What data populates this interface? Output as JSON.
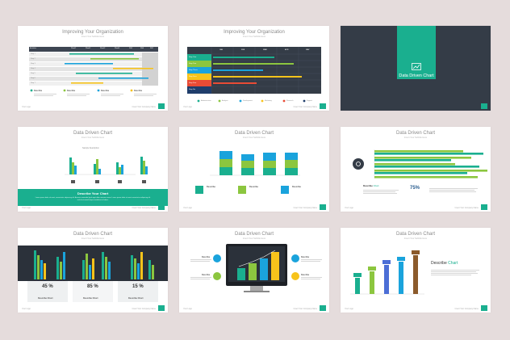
{
  "colors": {
    "teal": "#1aaf8f",
    "green": "#8cc63f",
    "blue": "#1aa3dc",
    "yellow": "#f7c31b",
    "red": "#e94b35",
    "navy": "#1f3d6b",
    "dark": "#343c47",
    "background": "#e5dcdc"
  },
  "slides": {
    "s1": {
      "title": "Improving Your Organization",
      "subtitle": "Insert Your Subtitle Here",
      "header_cells": [
        "Activities",
        "Week1",
        "Week2",
        "Week3",
        "Week4",
        "Wk5",
        "Wk6",
        "Wk7"
      ],
      "rows": [
        "Step 1",
        "Step 2",
        "Step 3",
        "Step 4",
        "Step 5",
        "Step 6",
        "Step 7"
      ],
      "legend": [
        "Describe",
        "Describe",
        "Describe",
        "Describe"
      ],
      "footer_left": "Your Logo",
      "footer_right": "Insert Your Company Name"
    },
    "s2": {
      "title": "Improving Your Organization",
      "subtitle": "Insert Your Subtitle Here",
      "columns": [
        "JAN",
        "FEB",
        "MAR",
        "APR",
        "MAY"
      ],
      "rows": [
        "Step One",
        "Step Two",
        "Step Three",
        "Step Four",
        "Step Five",
        "Step Six"
      ],
      "legend": [
        "Administrative",
        "Analysis",
        "Development",
        "Marketing",
        "Research",
        "Support"
      ],
      "footer_left": "Your Logo",
      "footer_right": "Insert Your Company Name"
    },
    "s3": {
      "title": "Data Driven Chart",
      "icon": "chart-icon"
    },
    "s4": {
      "title": "Data Driven Chart",
      "subtitle": "Insert Your Subtitle Here",
      "chart_title": "Sample Description",
      "band_title": "Describe Your Chart",
      "band_text": "Lorem ipsum dolor sit amet, consectetur adipiscing elit. Aenean commodo ligula eget dolor aenean massa. Lorem ipsum dolor sit amet consectetur adipiscing elit sed do eiusmod tempor incididunt ut labore.",
      "footer_left": "Your Logo",
      "footer_right": "Insert Your Company Name"
    },
    "s5": {
      "title": "Data Driven Chart",
      "subtitle": "Insert Your Subtitle Here",
      "describe": [
        "Describe",
        "Describe",
        "Describe"
      ],
      "footer_left": "Your Logo",
      "footer_right": "Insert Your Company Name"
    },
    "s6": {
      "title": "Data Driven Chart",
      "subtitle": "Insert Your Subtitle Here",
      "describe_label": "Describe",
      "describe_word": "Chart",
      "percent": "75%",
      "footer_left": "Your Logo",
      "footer_right": "Insert Your Company Name"
    },
    "s7": {
      "title": "Data Driven Chart",
      "subtitle": "Insert Your Subtitle Here",
      "percents": [
        "45 %",
        "85 %",
        "15 %"
      ],
      "labels": [
        "Describe Chart",
        "Describe Chart",
        "Describe Chart"
      ],
      "footer_left": "Your Logo",
      "footer_right": "Insert Your Company Name"
    },
    "s8": {
      "title": "Data Driven Chart",
      "subtitle": "Insert Your Subtitle Here",
      "describe": [
        "Describe",
        "Describe",
        "Describe",
        "Describe"
      ],
      "footer_left": "Your Logo",
      "footer_right": "Insert Your Company Name"
    },
    "s9": {
      "title": "Data Driven Chart",
      "subtitle": "Insert Your Subtitle Here",
      "describe_label": "Describe",
      "describe_word": "Chart",
      "footer_left": "Your Logo",
      "footer_right": "Insert Your Company Name"
    }
  }
}
